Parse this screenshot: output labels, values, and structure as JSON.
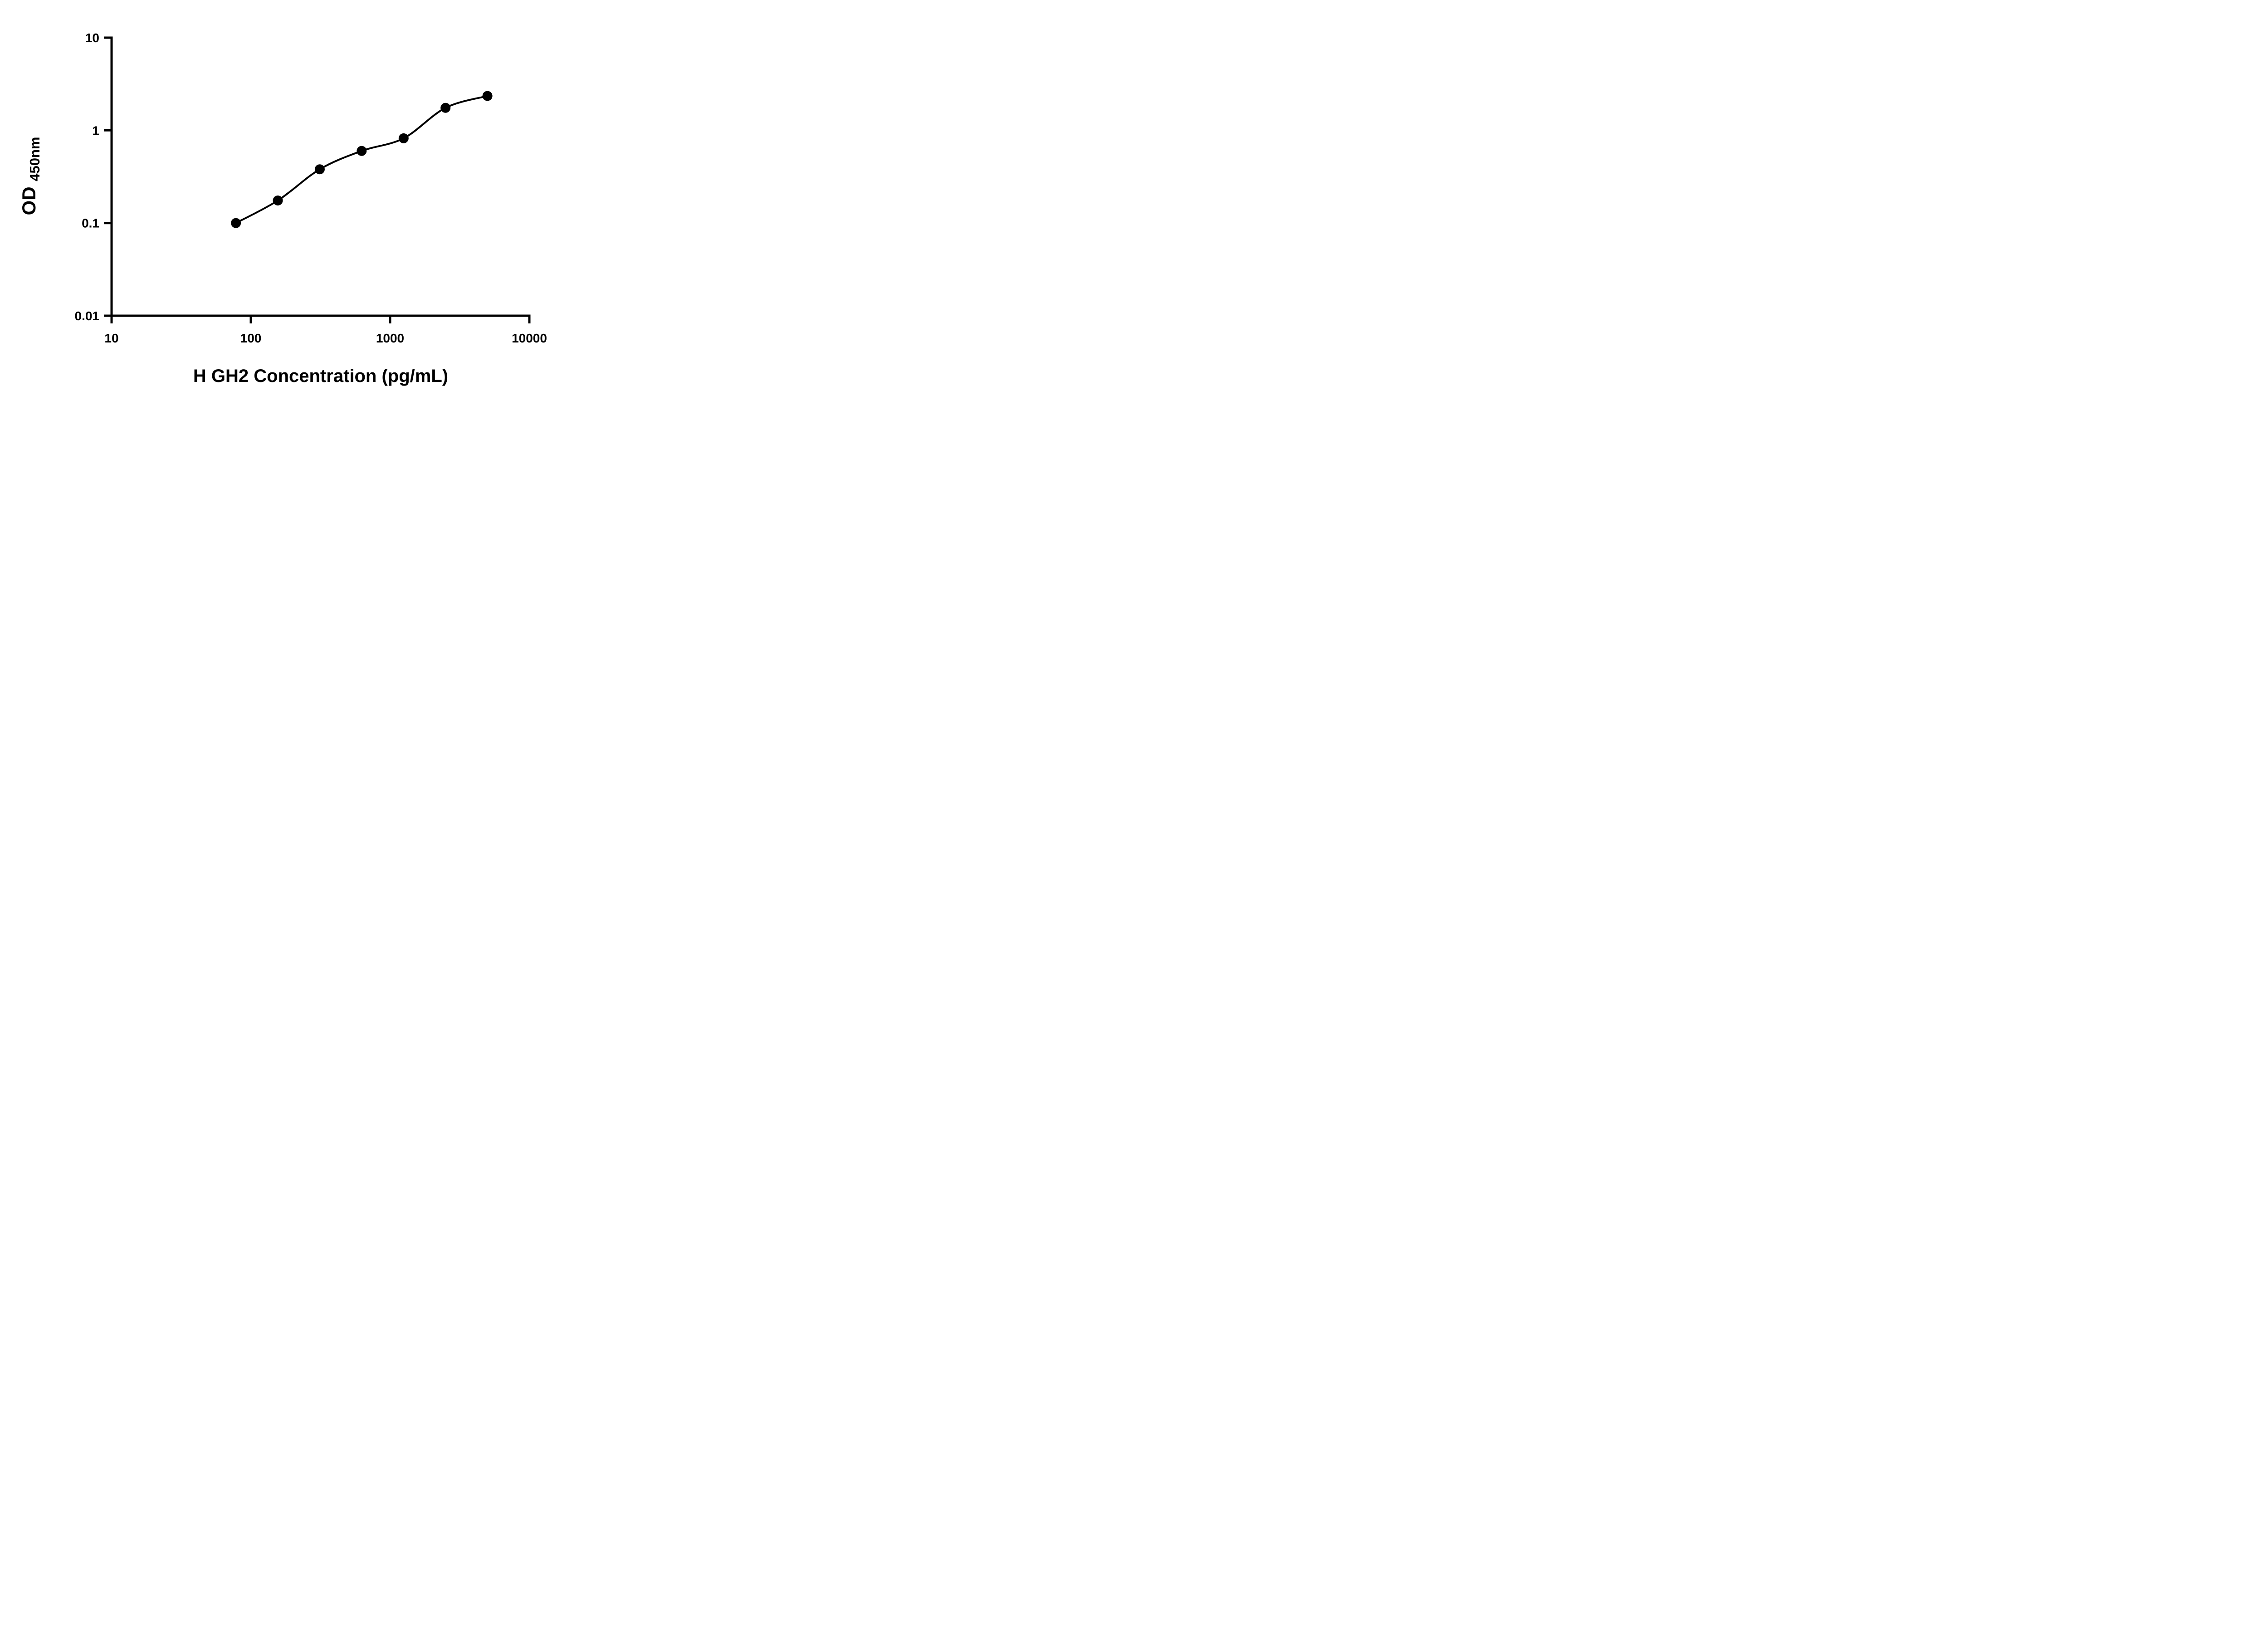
{
  "chart_data": {
    "type": "scatter",
    "title": "",
    "xlabel": "H GH2 Concentration (pg/mL)",
    "ylabel": "OD450nm",
    "ylabel_main": "OD",
    "ylabel_sub": "450nm",
    "x_scale": "log",
    "y_scale": "log",
    "xlim": [
      10,
      10000
    ],
    "ylim": [
      0.01,
      10
    ],
    "grid": false,
    "legend": "none",
    "x_ticks": [
      {
        "value": 10,
        "label": "10"
      },
      {
        "value": 100,
        "label": "100"
      },
      {
        "value": 1000,
        "label": "1000"
      },
      {
        "value": 10000,
        "label": "10000"
      }
    ],
    "y_ticks": [
      {
        "value": 0.01,
        "label": "0.01"
      },
      {
        "value": 0.1,
        "label": "0.1"
      },
      {
        "value": 1,
        "label": "1"
      },
      {
        "value": 10,
        "label": "10"
      }
    ],
    "series": [
      {
        "marker": "filled-circle",
        "fit": "smooth-curve",
        "x": [
          78.125,
          156.25,
          312.5,
          625,
          1250,
          2500,
          5000
        ],
        "y": [
          0.1,
          0.175,
          0.38,
          0.6,
          0.82,
          1.75,
          2.35
        ]
      }
    ],
    "colors": {
      "axis": "#000000",
      "marker": "#000000",
      "curve": "#000000",
      "text": "#000000",
      "background": "#ffffff"
    }
  }
}
